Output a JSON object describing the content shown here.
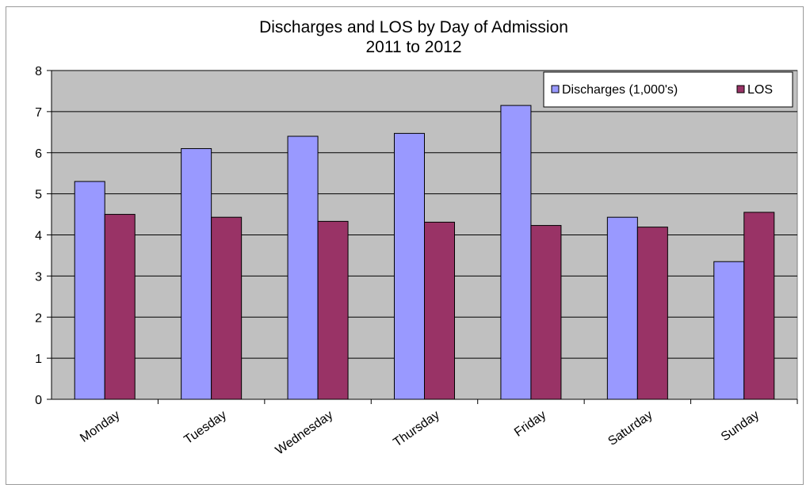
{
  "chart_data": {
    "type": "bar",
    "title": "Discharges and LOS by Day of Admission",
    "subtitle": "2011 to 2012",
    "xlabel": "",
    "ylabel": "",
    "categories": [
      "Monday",
      "Tuesday",
      "Wednesday",
      "Thursday",
      "Friday",
      "Saturday",
      "Sunday"
    ],
    "series": [
      {
        "name": "Discharges (1,000's)",
        "color": "#9999ff",
        "values": [
          5.3,
          6.1,
          6.4,
          6.47,
          7.15,
          4.43,
          3.35
        ]
      },
      {
        "name": "LOS",
        "color": "#993366",
        "values": [
          4.5,
          4.43,
          4.33,
          4.31,
          4.23,
          4.19,
          4.55
        ]
      }
    ],
    "ylim": [
      0,
      8
    ],
    "yticks": [
      "0",
      "1",
      "2",
      "3",
      "4",
      "5",
      "6",
      "7",
      "8"
    ],
    "grid": true,
    "legend": "top-right",
    "plot_background": "#c0c0c0"
  }
}
